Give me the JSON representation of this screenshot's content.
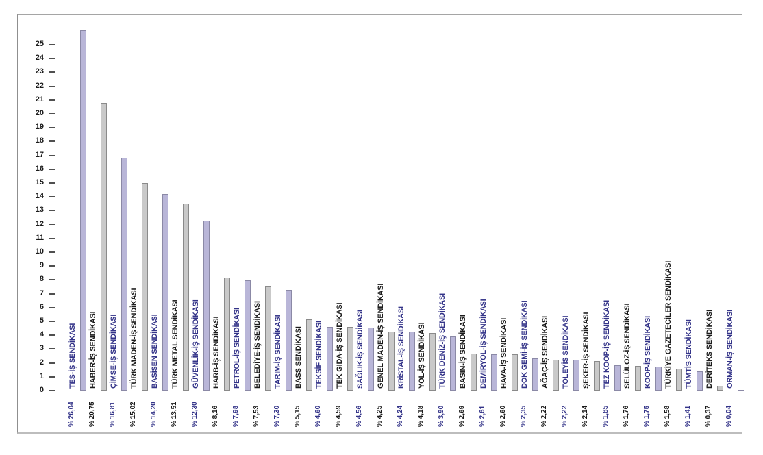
{
  "chart_data": {
    "type": "bar",
    "title": "",
    "xlabel": "",
    "ylabel": "",
    "ylim": [
      0,
      25
    ],
    "ytick_step": 1,
    "yticks": [
      0,
      1,
      2,
      3,
      4,
      5,
      6,
      7,
      8,
      9,
      10,
      11,
      12,
      13,
      14,
      15,
      16,
      17,
      18,
      19,
      20,
      21,
      22,
      23,
      24,
      25
    ],
    "grid": false,
    "legend_position": "none",
    "value_prefix": "%",
    "colors": {
      "purple_bar_fill": "#b9b6d8",
      "purple_bar_border": "#8b89a6",
      "gray_bar_fill": "#c9c9c9",
      "gray_bar_border": "#8a8a8a",
      "blue_label_text": "#333388",
      "black_label_text": "#1b1b1b",
      "axis_tick": "#4f4f4f",
      "frame_border": "#8f8f8f",
      "background": "#ffffff"
    },
    "bars": [
      {
        "name": "TES-İŞ SENDİKASI",
        "value": 26.04,
        "label": "% 26,04",
        "variant": "purple"
      },
      {
        "name": "HABER-İŞ SENDİKASI",
        "value": 20.75,
        "label": "% 20,75",
        "variant": "gray"
      },
      {
        "name": "ÇİMSE-İŞ SENDİKASI",
        "value": 16.81,
        "label": "% 16,81",
        "variant": "purple"
      },
      {
        "name": "TÜRK MADEN-İŞ SENDİKASI",
        "value": 15.02,
        "label": "% 15,02",
        "variant": "gray"
      },
      {
        "name": "BASİSEN SENDİKASI",
        "value": 14.2,
        "label": "% 14,20",
        "variant": "purple"
      },
      {
        "name": "TÜRK METAL SENDİKASI",
        "value": 13.51,
        "label": "% 13,51",
        "variant": "gray"
      },
      {
        "name": "GÜVENLİK-İŞ SENDİKASI",
        "value": 12.3,
        "label": "% 12,30",
        "variant": "purple"
      },
      {
        "name": "HARB-İŞ SENDİKASI",
        "value": 8.16,
        "label": "% 8,16",
        "variant": "gray"
      },
      {
        "name": "PETROL-İŞ SENDİKASI",
        "value": 7.98,
        "label": "% 7,98",
        "variant": "purple"
      },
      {
        "name": "BELEDİYE-İŞ SENDİKASI",
        "value": 7.53,
        "label": "% 7,53",
        "variant": "gray"
      },
      {
        "name": "TARIM-İŞ SENDİKASI",
        "value": 7.3,
        "label": "% 7,30",
        "variant": "purple"
      },
      {
        "name": "BASS SENDİKASI",
        "value": 5.15,
        "label": "% 5,15",
        "variant": "gray"
      },
      {
        "name": "TEKSİF SENDİKASI",
        "value": 4.6,
        "label": "% 4,60",
        "variant": "purple"
      },
      {
        "name": "TEK GIDA-İŞ SENDİKASI",
        "value": 4.59,
        "label": "% 4,59",
        "variant": "gray"
      },
      {
        "name": "SAĞLIK-İŞ SENDİKASI",
        "value": 4.56,
        "label": "% 4,56",
        "variant": "purple"
      },
      {
        "name": "GENEL MADEN-İŞ SENDİKASI",
        "value": 4.25,
        "label": "% 4,25",
        "variant": "gray"
      },
      {
        "name": "KRİSTAL-İŞ SENDİKASI",
        "value": 4.24,
        "label": "% 4,24",
        "variant": "purple"
      },
      {
        "name": "YOL-İŞ SENDİKASI",
        "value": 4.18,
        "label": "% 4,18",
        "variant": "gray"
      },
      {
        "name": "TÜRK DENİZ-İŞ SENDİKASI",
        "value": 3.9,
        "label": "% 3,90",
        "variant": "purple"
      },
      {
        "name": "BASIN-İŞ SENDİKASI",
        "value": 2.69,
        "label": "% 2,69",
        "variant": "gray"
      },
      {
        "name": "DEMİRYOL-İŞ SENDİKASI",
        "value": 2.61,
        "label": "% 2,61",
        "variant": "purple"
      },
      {
        "name": "HAVA-İŞ SENDİKASI",
        "value": 2.6,
        "label": "% 2,60",
        "variant": "gray"
      },
      {
        "name": "DOK GEMİ-İŞ SENDİKASI",
        "value": 2.35,
        "label": "% 2,35",
        "variant": "purple"
      },
      {
        "name": "AĞAÇ-İŞ SENDİKASI",
        "value": 2.22,
        "label": "% 2,22",
        "variant": "gray"
      },
      {
        "name": "TOLEYİS SENDİKASI",
        "value": 2.22,
        "label": "% 2,22",
        "variant": "purple"
      },
      {
        "name": "ŞEKER-İŞ SENDİKASI",
        "value": 2.14,
        "label": "% 2,14",
        "variant": "gray"
      },
      {
        "name": "TEZ KOOP-İŞ SENDİKASI",
        "value": 1.85,
        "label": "% 1,85",
        "variant": "purple"
      },
      {
        "name": "SELÜLOZ-İŞ SENDİKASI",
        "value": 1.76,
        "label": "% 1,76",
        "variant": "gray"
      },
      {
        "name": "KOOP-İŞ SENDİKASI",
        "value": 1.75,
        "label": "% 1,75",
        "variant": "purple"
      },
      {
        "name": "TÜRKİYE GAZETECİLER SENDİKASI",
        "value": 1.58,
        "label": "% 1,58",
        "variant": "gray"
      },
      {
        "name": "TÜMTİS SENDİKASI",
        "value": 1.41,
        "label": "% 1,41",
        "variant": "purple"
      },
      {
        "name": "DERİTEKS SENDİKASI",
        "value": 0.37,
        "label": "% 0,37",
        "variant": "gray"
      },
      {
        "name": "ORMAN-İŞ SENDİKASI",
        "value": 0.04,
        "label": "% 0,04",
        "variant": "purple"
      }
    ]
  }
}
